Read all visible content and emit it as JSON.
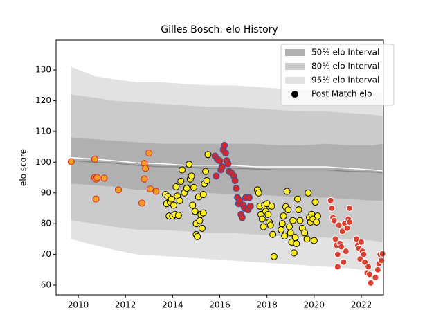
{
  "chart_data": {
    "type": "scatter",
    "title": "Gilles Bosch: elo History",
    "ylabel": "elo score",
    "xlim": [
      2009.06,
      2022.94
    ],
    "ylim": [
      56.85,
      139.7
    ],
    "xticks": [
      2010,
      2012,
      2014,
      2016,
      2018,
      2020,
      2022
    ],
    "yticks": [
      60,
      70,
      80,
      90,
      100,
      110,
      120,
      130
    ],
    "legend": "upper right",
    "band_x": [
      2009.7,
      2010.7,
      2011.5,
      2012.5,
      2013.5,
      2014.5,
      2015.5,
      2016.5,
      2017.5,
      2018.5,
      2019.5,
      2020.5,
      2021.5,
      2022.5,
      2022.9
    ],
    "bands": [
      {
        "name": "50% elo Interval",
        "color": "#b0b0b0",
        "upper": [
          108,
          107.5,
          107,
          106.5,
          106,
          106,
          106,
          106,
          106,
          105.5,
          105.5,
          106,
          105.5,
          105.5,
          106
        ],
        "lower": [
          93,
          92.5,
          92,
          91,
          91,
          90.5,
          90,
          89.5,
          89.5,
          89,
          88.5,
          88.5,
          88,
          87.5,
          87.5
        ]
      },
      {
        "name": "80% elo Interval",
        "color": "#cbcbcb",
        "upper": [
          122,
          121,
          120,
          119.5,
          119,
          118.5,
          118,
          118,
          117.5,
          117,
          116.5,
          116.5,
          116,
          115.5,
          115
        ],
        "lower": [
          81,
          80,
          79,
          78,
          78,
          77.5,
          77,
          77,
          76.5,
          76,
          75.5,
          75.5,
          75,
          74.5,
          74
        ]
      },
      {
        "name": "95% elo Interval",
        "color": "#e2e2e2",
        "upper": [
          131,
          128,
          127,
          126,
          126,
          125.5,
          125,
          125,
          124.5,
          124,
          123.5,
          124,
          123,
          122,
          123
        ],
        "lower": [
          75,
          73,
          71.5,
          70,
          69.5,
          69,
          68.5,
          68,
          67.5,
          67,
          66.5,
          66,
          65.5,
          64.5,
          65
        ]
      }
    ],
    "lines": [
      {
        "color": "#888888",
        "values": [
          100.5,
          100,
          99.7,
          99,
          98.5,
          98.5,
          98,
          98,
          97.8,
          97.5,
          97.5,
          97.5,
          97,
          96.8,
          96.5
        ]
      },
      {
        "color": "#ffffff",
        "values": [
          101.5,
          101,
          100.5,
          99.8,
          99.5,
          99,
          99,
          99,
          98.5,
          98.5,
          98.5,
          98.5,
          98,
          97.5,
          97.2
        ]
      }
    ],
    "points_name": "Post Match elo",
    "points_legend_color": "#000000",
    "groups": [
      {
        "fill": "#f0a020",
        "edge": "#d62728",
        "x": [
          2009.7,
          2010.7,
          2010.7,
          2010.75,
          2010.8,
          2010.75,
          2011.1,
          2011.7,
          2012.7,
          2012.8,
          2012.8,
          2012.85,
          2013,
          2013.05,
          2013.3
        ],
        "values": [
          100.2,
          101,
          95,
          94.5,
          95,
          88,
          94.8,
          91,
          86.7,
          94.5,
          99.6,
          98,
          103,
          91.3,
          90.5
        ]
      },
      {
        "fill": "#ffee22",
        "edge": "#000000",
        "x": [
          2013.7,
          2013.75,
          2013.8,
          2013.85,
          2013.9,
          2013.95,
          2014,
          2014.05,
          2014.1,
          2014.15,
          2014.2,
          2014.25,
          2014.3,
          2014.35,
          2014.4,
          2014.5,
          2014.6,
          2014.7,
          2014.75,
          2014.8,
          2014.85,
          2014.9,
          2014.95,
          2015,
          2015,
          2015.05,
          2015.1,
          2015.15,
          2015.2,
          2015.25,
          2015.3,
          2015.35,
          2015.4,
          2015.45,
          2015.5,
          2015.3
        ],
        "values": [
          89.5,
          86.5,
          88.8,
          82.5,
          87,
          88,
          82.5,
          86,
          83,
          92,
          89,
          82.7,
          87.5,
          93.8,
          97.5,
          90,
          91.5,
          99.3,
          94.5,
          95.5,
          86,
          91.8,
          84,
          80,
          76.5,
          75.8,
          88.7,
          81,
          83,
          78.5,
          83.5,
          93,
          97,
          94,
          102.5,
          89.5
        ]
      },
      {
        "fill": "#d62728",
        "edge": "#3a4fa0",
        "x": [
          2015.8,
          2015.85,
          2015.9,
          2016,
          2016.05,
          2016.1,
          2016.15,
          2016.2,
          2016.25,
          2016.3,
          2016.35,
          2016.4,
          2016.5,
          2016.6,
          2016.65,
          2016.7,
          2016.75,
          2016.8,
          2016.85,
          2016.9,
          2016.95,
          2017,
          2017.05,
          2017.1,
          2017.2,
          2017.25,
          2017.3
        ],
        "values": [
          102,
          95.5,
          101,
          100.5,
          97.5,
          98.5,
          104,
          105.5,
          103,
          100.5,
          99.5,
          97,
          96.5,
          95.5,
          94,
          91.5,
          88.5,
          86.5,
          87.5,
          83,
          82,
          86,
          85,
          88.5,
          84.5,
          88.5,
          85.7
        ]
      },
      {
        "fill": "#ffee22",
        "edge": "#000000",
        "x": [
          2017.6,
          2017.65,
          2017.7,
          2017.75,
          2017.8,
          2017.85,
          2017.9,
          2017.95,
          2018,
          2018.05,
          2018.1,
          2018.15,
          2018.2,
          2018.25,
          2018.3,
          2018.6,
          2018.65,
          2018.7,
          2018.75,
          2018.8,
          2018.85,
          2018.9,
          2018.95,
          2019,
          2019.05,
          2019.1,
          2019.15,
          2019.2,
          2019.25,
          2019.3,
          2019.35,
          2019.4,
          2019.5,
          2019.6,
          2019.7,
          2019.75,
          2019.8,
          2019.85,
          2019.9,
          2019.95,
          2020,
          2020.05,
          2020.1,
          2020.15
        ],
        "values": [
          91,
          90,
          85.7,
          83,
          81.5,
          79,
          86,
          84,
          86.5,
          83,
          80.5,
          79.5,
          85.7,
          76.5,
          69.3,
          78,
          80,
          82.5,
          76,
          85.5,
          90.5,
          84.5,
          79,
          77,
          74,
          81,
          70.5,
          75.5,
          73.5,
          88,
          84.5,
          81,
          78.5,
          77,
          75,
          90,
          82,
          80.5,
          83,
          81.5,
          74.5,
          87,
          80.5,
          82.5
        ]
      },
      {
        "fill": "#d94030",
        "edge": "#ffffff",
        "x": [
          2020.7,
          2020.75,
          2020.8,
          2020.85,
          2020.9,
          2020.95,
          2021,
          2021,
          2021.05,
          2021.1,
          2021.15,
          2021.2,
          2021.25,
          2021.3,
          2021.35,
          2021.4,
          2021.45,
          2021.5,
          2021.5,
          2021.8,
          2021.85,
          2021.9,
          2021.95,
          2022,
          2022.05,
          2022.1,
          2022.15,
          2022.25,
          2022.3,
          2022.35,
          2022.4,
          2022.6,
          2022.7,
          2022.75,
          2022.8,
          2022.85,
          2022.9
        ],
        "values": [
          87.5,
          85,
          82,
          81,
          75,
          73,
          66,
          70,
          79.5,
          73.5,
          72.5,
          77.5,
          67.5,
          80,
          71,
          78.5,
          81.5,
          85,
          80.5,
          75,
          73,
          72,
          68.5,
          74,
          71,
          70,
          67.5,
          64,
          66,
          63.5,
          60.7,
          62.5,
          65,
          67,
          70,
          68,
          70.2
        ]
      }
    ]
  }
}
